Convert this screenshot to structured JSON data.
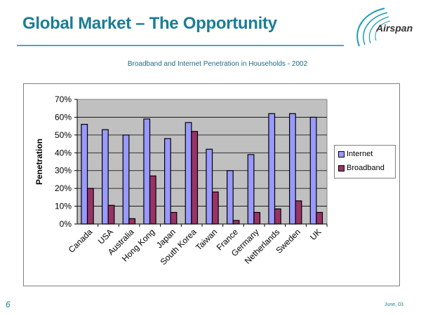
{
  "slide": {
    "title": "Global Market – The Opportunity",
    "logo_text": "Airspan",
    "page_number": "6",
    "date": "June, 03"
  },
  "chart_data": {
    "type": "bar",
    "title": "Broadband and Internet  Penetration in Households - 2002",
    "xlabel": "",
    "ylabel": "Penetration",
    "ylim": [
      0,
      70
    ],
    "yticks": [
      "0%",
      "10%",
      "20%",
      "30%",
      "40%",
      "50%",
      "60%",
      "70%"
    ],
    "grid": true,
    "legend_position": "right",
    "categories": [
      "Canada",
      "USA",
      "Australia",
      "Hong Kong",
      "Japan",
      "South Korea",
      "Taiwan",
      "France",
      "Germany",
      "Netherlands",
      "Sweden",
      "UK"
    ],
    "series": [
      {
        "name": "Internet",
        "color": "#9999ff",
        "values": [
          56,
          53,
          50,
          59,
          48,
          57,
          42,
          30,
          39,
          62,
          62,
          60
        ]
      },
      {
        "name": "Broadband",
        "color": "#993366",
        "values": [
          20,
          10.5,
          3,
          27,
          6.5,
          52,
          18,
          2,
          6.5,
          8.5,
          13,
          6.5
        ]
      }
    ]
  }
}
